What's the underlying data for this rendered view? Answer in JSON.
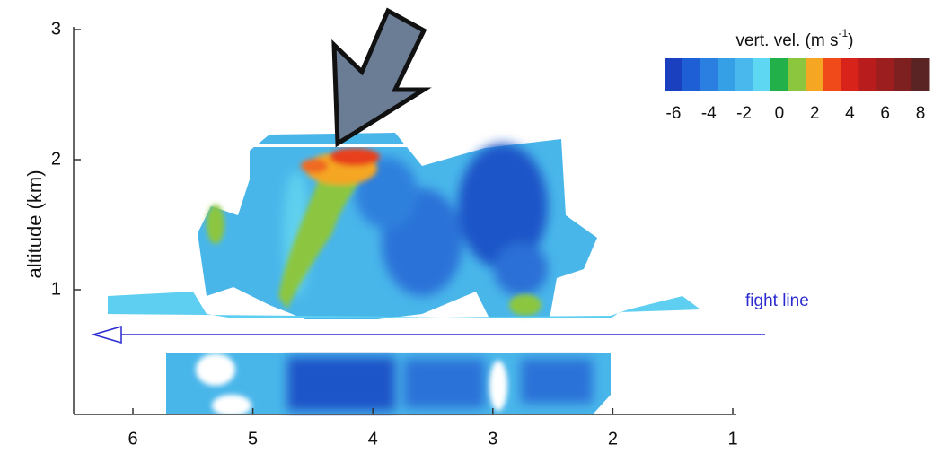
{
  "figure": {
    "y_axis": {
      "label": "altitude (km)",
      "ticks": [
        "3",
        "2",
        "1"
      ]
    },
    "x_axis": {
      "ticks": [
        "6",
        "5",
        "4",
        "3",
        "2",
        "1"
      ]
    },
    "colorbar": {
      "title": "vert. vel. (m s",
      "title_exponent": "-1",
      "title_end": ")",
      "ticks": [
        "-6",
        "-4",
        "-2",
        "0",
        "2",
        "4",
        "6",
        "8"
      ]
    },
    "annotation": "fight line"
  }
}
